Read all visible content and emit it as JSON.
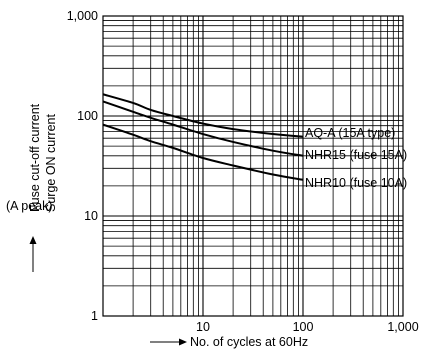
{
  "chart_data": {
    "type": "line",
    "x_scale": "log",
    "y_scale": "log",
    "xlim": [
      1,
      1000
    ],
    "ylim": [
      1,
      1000
    ],
    "grid": true,
    "xlabel": "No. of cycles at 60Hz",
    "ylabel_lines": [
      "Fuse cut-off current",
      "Surge ON current"
    ],
    "yunit": "(A peak)",
    "xticks": [
      {
        "value": 10,
        "label": "10"
      },
      {
        "value": 100,
        "label": "100"
      },
      {
        "value": 1000,
        "label": "1,000"
      }
    ],
    "yticks": [
      {
        "value": 1,
        "label": "1"
      },
      {
        "value": 10,
        "label": "10"
      },
      {
        "value": 100,
        "label": "100"
      },
      {
        "value": 1000,
        "label": "1,000"
      }
    ],
    "series": [
      {
        "name": "AQ-A (15A type)",
        "x": [
          1,
          2,
          3,
          5,
          10,
          20,
          50,
          100
        ],
        "y": [
          165,
          135,
          115,
          100,
          84,
          74,
          66,
          62
        ]
      },
      {
        "name": "NHR15 (fuse 15A)",
        "x": [
          1,
          2,
          3,
          5,
          10,
          20,
          50,
          100
        ],
        "y": [
          140,
          110,
          96,
          82,
          66,
          55,
          45,
          40
        ]
      },
      {
        "name": "NHR10 (fuse 10A)",
        "x": [
          1,
          2,
          3,
          5,
          10,
          20,
          50,
          100
        ],
        "y": [
          82,
          65,
          56,
          48,
          38,
          32,
          26,
          23
        ]
      }
    ]
  }
}
